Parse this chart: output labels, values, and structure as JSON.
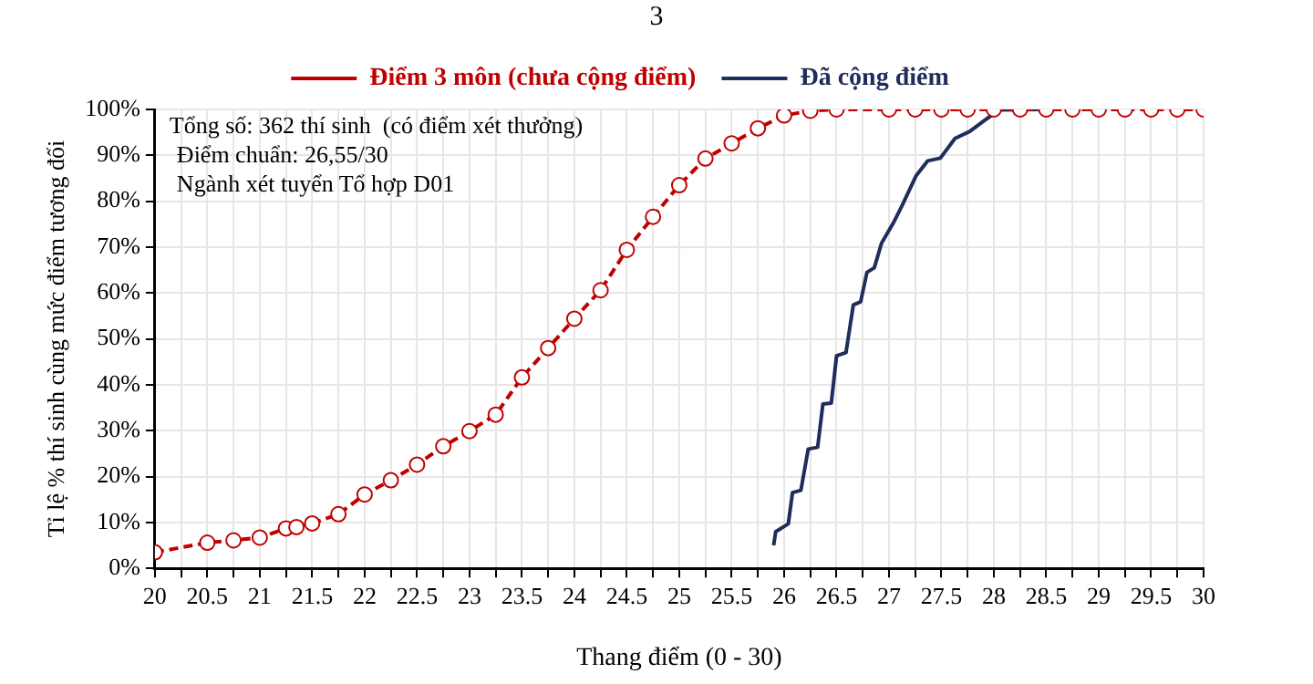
{
  "chart_data": {
    "type": "line",
    "xlabel": "Thang điểm (0 - 30)",
    "ylabel": "Tỉ lệ % thí sinh cùng mức điểm tương đối",
    "annotations": [
      "3",
      "Tổng số: 362 thí sinh  (có điểm xét thưởng)",
      "Điểm chuẩn: 26,55/30",
      "Ngành xét tuyển Tổ hợp D01"
    ],
    "xlim": [
      20,
      30
    ],
    "xticks": [
      20,
      {
        "value": 20.25,
        "label": null
      },
      20.5,
      {
        "value": 20.75,
        "label": null
      },
      21,
      {
        "value": 21.25,
        "label": null
      },
      21.5,
      {
        "value": 21.75,
        "label": null
      },
      22,
      {
        "value": 22.25,
        "label": null
      },
      22.5,
      {
        "value": 22.75,
        "label": null
      },
      23,
      {
        "value": 23.25,
        "label": null
      },
      23.5,
      {
        "value": 23.75,
        "label": null
      },
      24,
      {
        "value": 24.25,
        "label": null
      },
      24.5,
      {
        "value": 24.75,
        "label": null
      },
      25,
      {
        "value": 25.25,
        "label": null
      },
      25.5,
      {
        "value": 25.75,
        "label": null
      },
      26,
      {
        "value": 26.25,
        "label": null
      },
      26.5,
      {
        "value": 26.75,
        "label": null
      },
      27,
      {
        "value": 27.25,
        "label": null
      },
      27.5,
      {
        "value": 27.75,
        "label": null
      },
      28,
      {
        "value": 28.25,
        "label": null
      },
      28.5,
      {
        "value": 28.75,
        "label": null
      },
      29,
      {
        "value": 29.25,
        "label": null
      },
      29.5,
      {
        "value": 29.75,
        "label": null
      },
      30
    ],
    "ylim": [
      0,
      100
    ],
    "yticks": [
      {
        "value": 0,
        "label": "0%"
      },
      {
        "value": 10,
        "label": "10%"
      },
      {
        "value": 20,
        "label": "20%"
      },
      {
        "value": 30,
        "label": "30%"
      },
      {
        "value": 40,
        "label": "40%"
      },
      {
        "value": 50,
        "label": "50%"
      },
      {
        "value": 60,
        "label": "60%"
      },
      {
        "value": 70,
        "label": "70%"
      },
      {
        "value": 80,
        "label": "80%"
      },
      {
        "value": 90,
        "label": "90%"
      },
      {
        "value": 100,
        "label": "100%"
      }
    ],
    "grid": true,
    "legend": "top",
    "series": [
      {
        "name": "Điểm 3 môn (chưa cộng điểm)",
        "color": "#c00000",
        "marker": "circle",
        "line_style": "dashed",
        "x": [
          20,
          20.5,
          20.75,
          21,
          21.25,
          21.35,
          21.5,
          21.75,
          22,
          22.25,
          22.5,
          22.75,
          23,
          23.25,
          23.5,
          23.75,
          24,
          24.25,
          24.5,
          24.75,
          25,
          25.25,
          25.5,
          25.75,
          26,
          26.25,
          26.5,
          27,
          27.25,
          27.5,
          27.75,
          28,
          28.25,
          28.5,
          28.75,
          29,
          29.25,
          29.5,
          29.75,
          30
        ],
        "values": [
          3.5,
          5.6,
          6.1,
          6.7,
          8.7,
          9,
          9.8,
          11.8,
          16.1,
          19.2,
          22.6,
          26.6,
          29.9,
          33.5,
          41.6,
          48,
          54.4,
          60.6,
          69.4,
          76.6,
          83.5,
          89.3,
          92.6,
          95.9,
          98.7,
          99.7,
          100,
          100,
          100,
          100,
          100,
          100,
          100,
          100,
          100,
          100,
          100,
          100,
          100,
          100
        ]
      },
      {
        "name": "Đã cộng điểm",
        "color": "#1f2d5c",
        "marker": "none",
        "line_style": "solid",
        "x": [
          25.9,
          25.92,
          26.04,
          26.08,
          26.16,
          26.23,
          26.32,
          26.37,
          26.45,
          26.5,
          26.59,
          26.66,
          26.73,
          26.79,
          26.86,
          26.93,
          27.04,
          27.12,
          27.26,
          27.37,
          27.49,
          27.63,
          27.77,
          27.91,
          28.05,
          28.43
        ],
        "values": [
          5,
          8,
          9.7,
          16.5,
          17,
          26,
          26.4,
          35.8,
          36,
          46.3,
          47,
          57.4,
          58.1,
          64.5,
          65.5,
          70.9,
          75.2,
          78.8,
          85.6,
          88.8,
          89.4,
          93.7,
          95.2,
          97.6,
          99.9,
          100
        ]
      }
    ]
  }
}
